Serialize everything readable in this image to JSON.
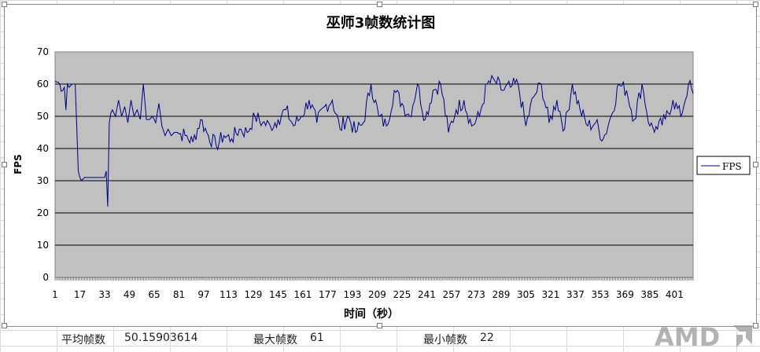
{
  "chart_data": {
    "type": "line",
    "title": "巫师3帧数统计图",
    "xlabel": "时间（秒）",
    "ylabel": "FPS",
    "ylim": [
      0,
      70
    ],
    "yticks": [
      0,
      10,
      20,
      30,
      40,
      50,
      60,
      70
    ],
    "xticks": [
      1,
      17,
      33,
      49,
      65,
      81,
      97,
      113,
      129,
      145,
      161,
      177,
      193,
      209,
      225,
      241,
      257,
      273,
      289,
      305,
      321,
      337,
      353,
      369,
      385,
      401
    ],
    "xlim": [
      1,
      413
    ],
    "grid": true,
    "legend_position": "right",
    "plot_bg": "#c0c0c0",
    "line_color": "#000080",
    "series": [
      {
        "name": "FPS",
        "x": [
          1,
          4,
          7,
          8,
          9,
          10,
          12,
          14,
          16,
          17,
          18,
          20,
          24,
          30,
          33,
          34,
          35,
          36,
          37,
          38,
          40,
          42,
          44,
          46,
          48,
          50,
          52,
          54,
          56,
          58,
          60,
          62,
          64,
          66,
          68,
          70,
          72,
          74,
          76,
          78,
          80,
          85,
          90,
          95,
          100,
          105,
          110,
          115,
          120,
          125,
          130,
          135,
          140,
          145,
          150,
          155,
          160,
          165,
          170,
          175,
          180,
          185,
          190,
          195,
          200,
          205,
          210,
          215,
          220,
          225,
          230,
          235,
          240,
          245,
          250,
          255,
          260,
          265,
          270,
          275,
          280,
          285,
          290,
          295,
          300,
          305,
          310,
          315,
          320,
          325,
          330,
          335,
          340,
          345,
          350,
          355,
          360,
          365,
          370,
          375,
          380,
          385,
          390,
          395,
          400,
          405,
          410,
          413
        ],
        "values": [
          61,
          60,
          59,
          52,
          60,
          59,
          60,
          60,
          33,
          31,
          30,
          31,
          31,
          31,
          31,
          33,
          22,
          48,
          51,
          52,
          50,
          55,
          50,
          53,
          48,
          55,
          50,
          52,
          49,
          60,
          49,
          49,
          50,
          48,
          54,
          47,
          44,
          46,
          44,
          45,
          45,
          44,
          42,
          49,
          44,
          41,
          44,
          43,
          46,
          45,
          50,
          48,
          47,
          49,
          52,
          47,
          50,
          55,
          48,
          53,
          55,
          46,
          50,
          45,
          48,
          60,
          50,
          47,
          58,
          54,
          50,
          60,
          49,
          58,
          60,
          45,
          52,
          55,
          47,
          50,
          60,
          61,
          58,
          59,
          60,
          47,
          56,
          60,
          48,
          55,
          46,
          60,
          52,
          47,
          48,
          43,
          50,
          60,
          58,
          49,
          60,
          47,
          46,
          49,
          55,
          50,
          60,
          57
        ]
      }
    ]
  },
  "footer": {
    "avg_label": "平均帧数",
    "avg_value": "50.15903614",
    "max_label": "最大帧数",
    "max_value": "61",
    "min_label": "最小帧数",
    "min_value": "22"
  },
  "watermark": {
    "text": "AMD"
  }
}
